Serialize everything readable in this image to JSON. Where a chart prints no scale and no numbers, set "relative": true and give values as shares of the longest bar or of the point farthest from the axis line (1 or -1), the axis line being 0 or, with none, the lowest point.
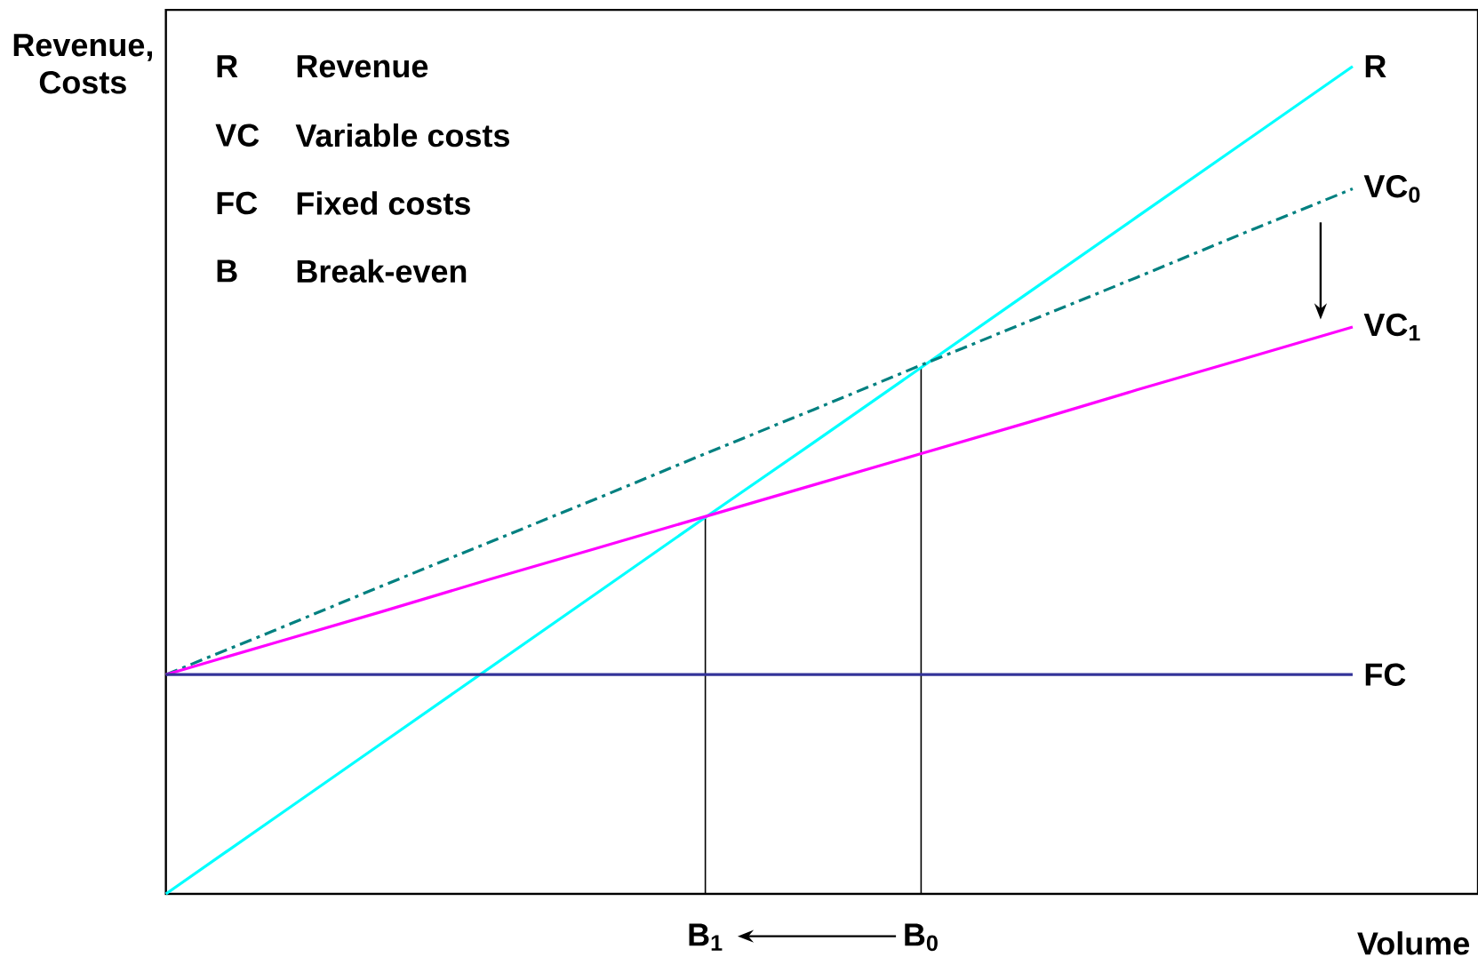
{
  "chart_data": {
    "type": "line",
    "relative": true,
    "categories": [
      null,
      null,
      null,
      null,
      null,
      "B$_{1}$",
      null,
      "B$_{0}$",
      null,
      null,
      null,
      null
    ],
    "series": [
      {
        "name": "R",
        "color": "#00ffff",
        "values": [
          0,
          0.091,
          0.182,
          0.273,
          0.364,
          0.455,
          0.545,
          0.636,
          0.727,
          0.818,
          0.909,
          1
        ],
        "line_style": "solid"
      },
      {
        "name": "VC$_{0}$",
        "color": "#008080",
        "values": [
          0.265,
          0.318,
          0.372,
          0.425,
          0.478,
          0.532,
          0.585,
          0.639,
          0.692,
          0.745,
          0.799,
          0.852
        ],
        "line_style": "dashed"
      },
      {
        "name": "VC$_{1}$",
        "color": "#ff00ff",
        "values": [
          0.265,
          0.303,
          0.341,
          0.38,
          0.418,
          0.456,
          0.494,
          0.532,
          0.57,
          0.609,
          0.647,
          0.685
        ],
        "line_style": "solid"
      },
      {
        "name": "FC",
        "color": "#333399",
        "values": [
          0.265,
          0.265,
          0.265,
          0.265,
          0.265,
          0.265,
          0.265,
          0.265,
          0.265,
          0.265,
          0.265,
          0.265
        ],
        "line_style": "solid"
      }
    ],
    "ref_lines": [
      {
        "axis": "x",
        "value": "B$_{1}$",
        "color": "#000000"
      },
      {
        "axis": "x",
        "value": "B$_{0}$",
        "color": "#000000"
      }
    ],
    "annotations": [
      "R",
      "Revenue",
      "VC",
      "Variable costs",
      "FC",
      "Fixed costs",
      "B",
      "Break-even",
      "Revenue, Costs",
      "Volume"
    ]
  }
}
